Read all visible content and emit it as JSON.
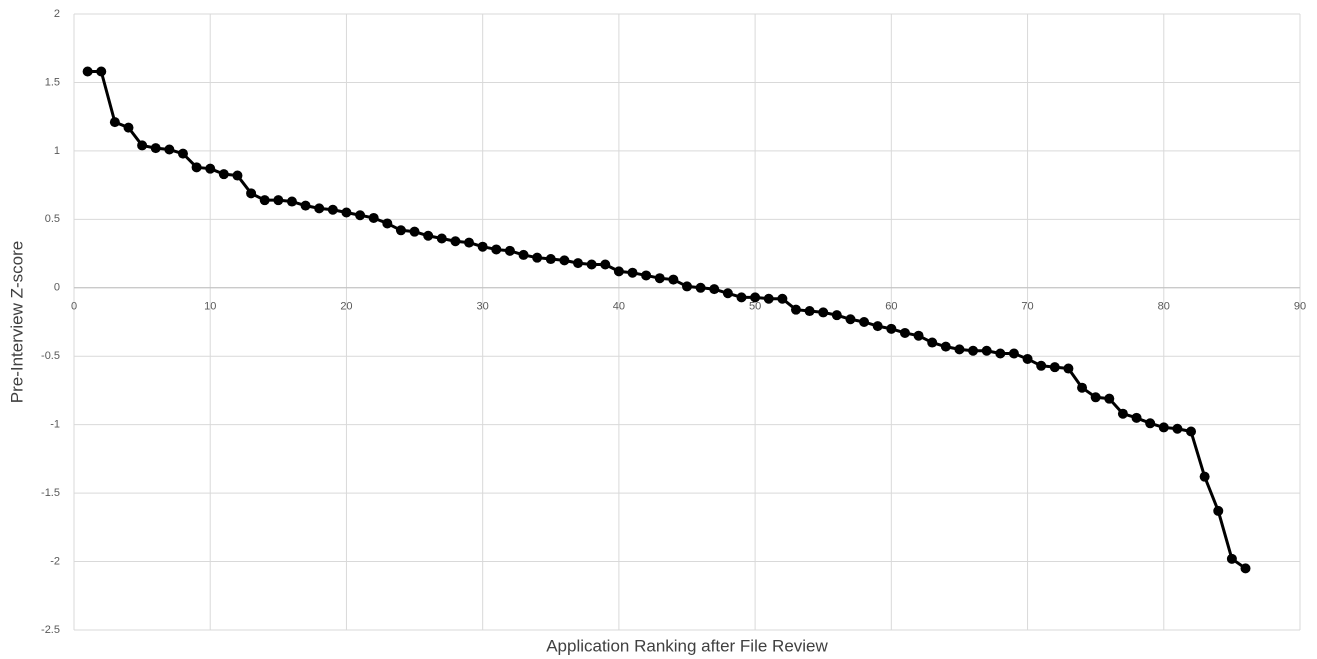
{
  "chart_data": {
    "type": "line",
    "x_label": "Application Ranking after File Review",
    "y_label": "Pre-Interview Z-score",
    "x": [
      1,
      2,
      3,
      4,
      5,
      6,
      7,
      8,
      9,
      10,
      11,
      12,
      13,
      14,
      15,
      16,
      17,
      18,
      19,
      20,
      21,
      22,
      23,
      24,
      25,
      26,
      27,
      28,
      29,
      30,
      31,
      32,
      33,
      34,
      35,
      36,
      37,
      38,
      39,
      40,
      41,
      42,
      43,
      44,
      45,
      46,
      47,
      48,
      49,
      50,
      51,
      52,
      53,
      54,
      55,
      56,
      57,
      58,
      59,
      60,
      61,
      62,
      63,
      64,
      65,
      66,
      67,
      68,
      69,
      70,
      71,
      72,
      73,
      74,
      75,
      76,
      77,
      78,
      79,
      80,
      81,
      82,
      83,
      84,
      85,
      86
    ],
    "series": [
      {
        "name": "Pre-Interview Z-score",
        "color": "#000000",
        "values": [
          1.58,
          1.58,
          1.21,
          1.17,
          1.04,
          1.02,
          1.01,
          0.98,
          0.88,
          0.87,
          0.83,
          0.82,
          0.69,
          0.64,
          0.64,
          0.63,
          0.6,
          0.58,
          0.57,
          0.55,
          0.53,
          0.51,
          0.47,
          0.42,
          0.41,
          0.38,
          0.36,
          0.34,
          0.33,
          0.3,
          0.28,
          0.27,
          0.24,
          0.22,
          0.21,
          0.2,
          0.18,
          0.17,
          0.17,
          0.12,
          0.11,
          0.09,
          0.07,
          0.06,
          0.01,
          0,
          -0.01,
          -0.04,
          -0.07,
          -0.07,
          -0.08,
          -0.08,
          -0.16,
          -0.17,
          -0.18,
          -0.2,
          -0.23,
          -0.25,
          -0.28,
          -0.3,
          -0.33,
          -0.35,
          -0.4,
          -0.43,
          -0.45,
          -0.46,
          -0.46,
          -0.48,
          -0.48,
          -0.52,
          -0.57,
          -0.58,
          -0.59,
          -0.73,
          -0.8,
          -0.81,
          -0.92,
          -0.95,
          -0.99,
          -1.02,
          -1.03,
          -1.05,
          -1.38,
          -1.63,
          -1.98,
          -2.05
        ]
      }
    ],
    "xlim": [
      0,
      90
    ],
    "xticks": [
      0,
      10,
      20,
      30,
      40,
      50,
      60,
      70,
      80,
      90
    ],
    "ylim": [
      -2.5,
      2
    ],
    "yticks": [
      2,
      1.5,
      1,
      0.5,
      0,
      -0.5,
      -1,
      -1.5,
      -2,
      -2.5
    ],
    "grid": true
  }
}
